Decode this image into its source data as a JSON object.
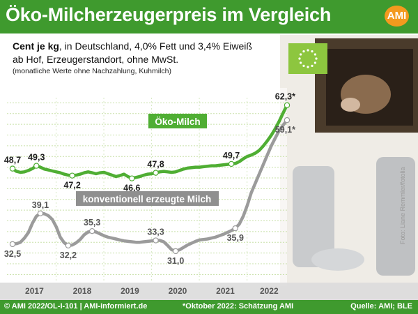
{
  "header": {
    "title": "Öko-Milcherzeugerpreis im Vergleich",
    "logo": "AMI"
  },
  "subtitle": {
    "line1_bold": "Cent je kg",
    "line1_rest": ", in Deutschland, 4,0% Fett und 3,4% Eiweiß",
    "line2": "ab Hof, Erzeugerstandort, ohne MwSt.",
    "line3": "(monatliche Werte ohne Nachzahlung, Kuhmilch)"
  },
  "footer": {
    "left": "© AMI 2022/OL-I-101 | AMI-informiert.de",
    "middle": "*Oktober 2022: Schätzung AMI",
    "right": "Quelle: AMI; BLE"
  },
  "photo_credit": "Foto: Liane Remmler/fotolia",
  "colors": {
    "green": "#3f9a2e",
    "eco_line": "#4fae33",
    "conv_line": "#9b9b9b",
    "grid": "#c8e0a8",
    "logo_orange": "#f39a1e"
  },
  "chart_data": {
    "type": "line",
    "x_ticks": [
      "2017",
      "2018",
      "2019",
      "2020",
      "2021",
      "2022"
    ],
    "x_range": [
      "2017-01",
      "2022-10"
    ],
    "ylim": [
      25,
      66
    ],
    "grid": true,
    "series": [
      {
        "name": "Öko-Milch",
        "color": "#4fae33",
        "points": [
          [
            "2017-01",
            48.7
          ],
          [
            "2017-02",
            48.1
          ],
          [
            "2017-03",
            47.9
          ],
          [
            "2017-04",
            48.0
          ],
          [
            "2017-05",
            48.3
          ],
          [
            "2017-06",
            48.7
          ],
          [
            "2017-07",
            49.3
          ],
          [
            "2017-08",
            49.0
          ],
          [
            "2017-09",
            48.6
          ],
          [
            "2017-10",
            48.4
          ],
          [
            "2017-11",
            48.2
          ],
          [
            "2017-12",
            48.0
          ],
          [
            "2018-01",
            47.8
          ],
          [
            "2018-02",
            47.5
          ],
          [
            "2018-03",
            47.3
          ],
          [
            "2018-04",
            47.2
          ],
          [
            "2018-05",
            47.3
          ],
          [
            "2018-06",
            47.5
          ],
          [
            "2018-07",
            47.8
          ],
          [
            "2018-08",
            48.0
          ],
          [
            "2018-09",
            47.8
          ],
          [
            "2018-10",
            47.6
          ],
          [
            "2018-11",
            47.8
          ],
          [
            "2018-12",
            47.9
          ],
          [
            "2019-01",
            47.6
          ],
          [
            "2019-02",
            47.3
          ],
          [
            "2019-03",
            47.0
          ],
          [
            "2019-04",
            47.2
          ],
          [
            "2019-05",
            47.5
          ],
          [
            "2019-06",
            47.0
          ],
          [
            "2019-07",
            46.6
          ],
          [
            "2019-08",
            46.8
          ],
          [
            "2019-09",
            47.0
          ],
          [
            "2019-10",
            47.3
          ],
          [
            "2019-11",
            47.5
          ],
          [
            "2019-12",
            47.6
          ],
          [
            "2020-01",
            47.8
          ],
          [
            "2020-02",
            48.0
          ],
          [
            "2020-03",
            48.1
          ],
          [
            "2020-04",
            48.0
          ],
          [
            "2020-05",
            47.9
          ],
          [
            "2020-06",
            48.0
          ],
          [
            "2020-07",
            48.3
          ],
          [
            "2020-08",
            48.6
          ],
          [
            "2020-09",
            48.8
          ],
          [
            "2020-10",
            48.9
          ],
          [
            "2020-11",
            49.0
          ],
          [
            "2020-12",
            49.0
          ],
          [
            "2021-01",
            49.1
          ],
          [
            "2021-02",
            49.2
          ],
          [
            "2021-03",
            49.3
          ],
          [
            "2021-04",
            49.3
          ],
          [
            "2021-05",
            49.4
          ],
          [
            "2021-06",
            49.5
          ],
          [
            "2021-07",
            49.6
          ],
          [
            "2021-08",
            49.7
          ],
          [
            "2021-09",
            49.8
          ],
          [
            "2021-10",
            50.2
          ],
          [
            "2021-11",
            50.8
          ],
          [
            "2021-12",
            51.3
          ],
          [
            "2022-01",
            51.6
          ],
          [
            "2022-02",
            52.0
          ],
          [
            "2022-03",
            52.6
          ],
          [
            "2022-04",
            53.5
          ],
          [
            "2022-05",
            54.6
          ],
          [
            "2022-06",
            55.8
          ],
          [
            "2022-07",
            57.2
          ],
          [
            "2022-08",
            58.8
          ],
          [
            "2022-09",
            60.6
          ],
          [
            "2022-10",
            62.3
          ]
        ]
      },
      {
        "name": "konventionell erzeugte Milch",
        "color": "#9b9b9b",
        "points": [
          [
            "2017-01",
            32.5
          ],
          [
            "2017-02",
            32.6
          ],
          [
            "2017-03",
            32.9
          ],
          [
            "2017-04",
            33.8
          ],
          [
            "2017-05",
            35.0
          ],
          [
            "2017-06",
            37.0
          ],
          [
            "2017-07",
            38.5
          ],
          [
            "2017-08",
            39.1
          ],
          [
            "2017-09",
            39.0
          ],
          [
            "2017-10",
            38.6
          ],
          [
            "2017-11",
            37.8
          ],
          [
            "2017-12",
            36.2
          ],
          [
            "2018-01",
            34.0
          ],
          [
            "2018-02",
            32.8
          ],
          [
            "2018-03",
            32.2
          ],
          [
            "2018-04",
            32.3
          ],
          [
            "2018-05",
            32.8
          ],
          [
            "2018-06",
            33.5
          ],
          [
            "2018-07",
            34.5
          ],
          [
            "2018-08",
            35.1
          ],
          [
            "2018-09",
            35.3
          ],
          [
            "2018-10",
            35.1
          ],
          [
            "2018-11",
            34.7
          ],
          [
            "2018-12",
            34.3
          ],
          [
            "2019-01",
            34.0
          ],
          [
            "2019-02",
            33.8
          ],
          [
            "2019-03",
            33.6
          ],
          [
            "2019-04",
            33.4
          ],
          [
            "2019-05",
            33.2
          ],
          [
            "2019-06",
            33.1
          ],
          [
            "2019-07",
            33.0
          ],
          [
            "2019-08",
            32.9
          ],
          [
            "2019-09",
            32.9
          ],
          [
            "2019-10",
            33.0
          ],
          [
            "2019-11",
            33.1
          ],
          [
            "2019-12",
            33.2
          ],
          [
            "2020-01",
            33.3
          ],
          [
            "2020-02",
            33.3
          ],
          [
            "2020-03",
            33.0
          ],
          [
            "2020-04",
            32.2
          ],
          [
            "2020-05",
            31.3
          ],
          [
            "2020-06",
            31.0
          ],
          [
            "2020-07",
            31.3
          ],
          [
            "2020-08",
            31.8
          ],
          [
            "2020-09",
            32.3
          ],
          [
            "2020-10",
            32.7
          ],
          [
            "2020-11",
            33.1
          ],
          [
            "2020-12",
            33.4
          ],
          [
            "2021-01",
            33.5
          ],
          [
            "2021-02",
            33.6
          ],
          [
            "2021-03",
            33.8
          ],
          [
            "2021-04",
            34.0
          ],
          [
            "2021-05",
            34.3
          ],
          [
            "2021-06",
            34.6
          ],
          [
            "2021-07",
            35.0
          ],
          [
            "2021-08",
            35.4
          ],
          [
            "2021-09",
            35.9
          ],
          [
            "2021-10",
            36.8
          ],
          [
            "2021-11",
            38.5
          ],
          [
            "2021-12",
            40.8
          ],
          [
            "2022-01",
            43.5
          ],
          [
            "2022-02",
            45.5
          ],
          [
            "2022-03",
            47.5
          ],
          [
            "2022-04",
            49.5
          ],
          [
            "2022-05",
            51.5
          ],
          [
            "2022-06",
            53.5
          ],
          [
            "2022-07",
            55.2
          ],
          [
            "2022-08",
            56.8
          ],
          [
            "2022-09",
            58.0
          ],
          [
            "2022-10",
            59.1
          ]
        ]
      }
    ],
    "data_labels": [
      {
        "series": 0,
        "x": "2017-01",
        "text": "48,7",
        "pos": "above"
      },
      {
        "series": 0,
        "x": "2017-07",
        "text": "49,3",
        "pos": "above"
      },
      {
        "series": 0,
        "x": "2018-04",
        "text": "47,2",
        "pos": "below"
      },
      {
        "series": 0,
        "x": "2019-07",
        "text": "46,6",
        "pos": "below"
      },
      {
        "series": 0,
        "x": "2020-01",
        "text": "47,8",
        "pos": "above"
      },
      {
        "series": 0,
        "x": "2021-08",
        "text": "49,7",
        "pos": "above"
      },
      {
        "series": 0,
        "x": "2022-10",
        "text": "62,3*",
        "pos": "above"
      },
      {
        "series": 1,
        "x": "2017-01",
        "text": "32,5",
        "pos": "below"
      },
      {
        "series": 1,
        "x": "2017-08",
        "text": "39,1",
        "pos": "above"
      },
      {
        "series": 1,
        "x": "2018-03",
        "text": "32,2",
        "pos": "below"
      },
      {
        "series": 1,
        "x": "2018-09",
        "text": "35,3",
        "pos": "above"
      },
      {
        "series": 1,
        "x": "2020-01",
        "text": "33,3",
        "pos": "above"
      },
      {
        "series": 1,
        "x": "2020-06",
        "text": "31,0",
        "pos": "below"
      },
      {
        "series": 1,
        "x": "2021-09",
        "text": "35,9",
        "pos": "below"
      },
      {
        "series": 1,
        "x": "2022-10",
        "text": "59,1*",
        "pos": "below"
      }
    ]
  }
}
